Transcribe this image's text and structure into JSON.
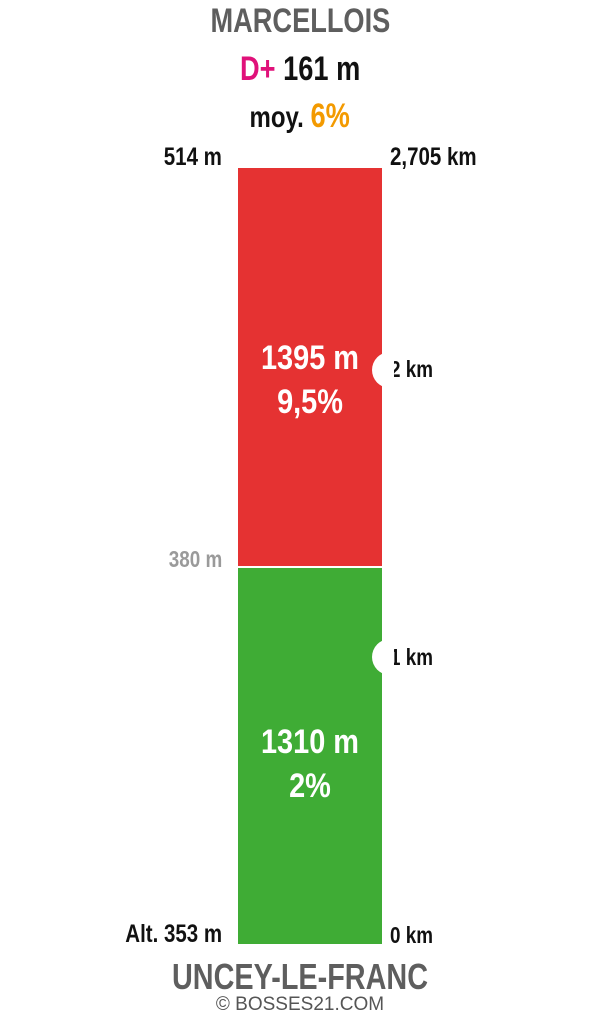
{
  "summit": "MARCELLOIS",
  "gain": {
    "label": "D+",
    "value": "161 m"
  },
  "average": {
    "label": "moy.",
    "value": "6%"
  },
  "altitude_labels": {
    "top": "514 m",
    "middle": "380 m",
    "bottom": "Alt. 353 m"
  },
  "distance_labels": {
    "top": "2,705 km",
    "km2": "2 km",
    "km1": "1 km",
    "km0": "0 km"
  },
  "segments": [
    {
      "length": "1395 m",
      "gradient": "9,5%",
      "color": "#e53232"
    },
    {
      "length": "1310 m",
      "gradient": "2%",
      "color": "#3fac35"
    }
  ],
  "start": "UNCEY-LE-FRANC",
  "copyright": "© BOSSES21.COM"
}
